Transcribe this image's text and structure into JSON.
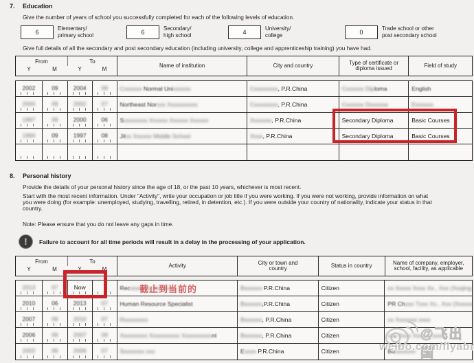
{
  "colors": {
    "accent_red": "#c9242a",
    "annotation_red": "#d25458",
    "watermark_gray": "#bdbbb8"
  },
  "section7": {
    "number": "7.",
    "title": "Education",
    "instruction1": "Give the number of years of school you successfully completed for each of the following levels of education.",
    "levels": [
      {
        "value": "6",
        "label1": "Elementary/",
        "label2": "primary school"
      },
      {
        "value": "6",
        "label1": "Secondary/",
        "label2": "high school"
      },
      {
        "value": "4",
        "label1": "University/",
        "label2": "college"
      },
      {
        "value": "0",
        "label1": "Trade school or other",
        "label2": "post secondary school"
      }
    ],
    "instruction2": "Give full details of all the secondary and post secondary education (including university, college and apprenticeship training) you have had.",
    "table": {
      "headers": {
        "from": "From",
        "to": "To",
        "y": "Y",
        "m": "M",
        "institution": "Name of institution",
        "city": "City and country",
        "certificate": "Type of certificate or diploma issued",
        "field": "Field of study"
      },
      "rows": [
        [
          [
            {
              "t": "2002",
              "b": 1
            }
          ],
          [
            {
              "t": "09",
              "b": 1
            }
          ],
          [
            {
              "t": "2004",
              "b": 1
            }
          ],
          [
            {
              "t": "09",
              "b": 2
            }
          ],
          [
            {
              "t": "Cxxxxxx ",
              "b": 2
            },
            {
              "t": "Normal Uni",
              "b": 1
            },
            {
              "t": "xxxxxx",
              "b": 2
            }
          ],
          [
            {
              "t": "Cxxxxxxxx",
              "b": 2
            },
            {
              "t": ", P.R.China",
              "b": 0
            }
          ],
          [
            {
              "t": "Cxxxxxx Dip",
              "b": 2
            },
            {
              "t": "loma",
              "b": 1
            }
          ],
          [
            {
              "t": "English",
              "b": 1
            }
          ]
        ],
        [
          [
            {
              "t": "2000",
              "b": 2
            }
          ],
          [
            {
              "t": "09",
              "b": 2
            }
          ],
          [
            {
              "t": "2002",
              "b": 2
            }
          ],
          [
            {
              "t": "07",
              "b": 2
            }
          ],
          [
            {
              "t": "Northeast Nor",
              "b": 1
            },
            {
              "t": "xxx Xxxxxxxxxx",
              "b": 2
            }
          ],
          [
            {
              "t": "Cxxxxxxxx",
              "b": 2
            },
            {
              "t": ", P.R.China",
              "b": 0
            }
          ],
          [
            {
              "t": "Cxxxxxx Dxxxxxa",
              "b": 2
            }
          ],
          [
            {
              "t": "Exxxxxx",
              "b": 2
            }
          ]
        ],
        [
          [
            {
              "t": "1997",
              "b": 2
            }
          ],
          [
            {
              "t": "09",
              "b": 2
            }
          ],
          [
            {
              "t": "2000",
              "b": 1
            }
          ],
          [
            {
              "t": "06",
              "b": 1
            }
          ],
          [
            {
              "t": "S",
              "b": 1
            },
            {
              "t": "xxxxxxxx Xxxxxx Xxxxxx Xxxxxx",
              "b": 2
            }
          ],
          [
            {
              "t": "Xxxxxxx",
              "b": 2
            },
            {
              "t": ", P.R.China",
              "b": 0
            }
          ],
          [
            {
              "t": "Secondary Diploma",
              "b": 0
            }
          ],
          [
            {
              "t": "Basic Courses",
              "b": 0
            }
          ]
        ],
        [
          [
            {
              "t": "1994",
              "b": 2
            }
          ],
          [
            {
              "t": "09",
              "b": 1
            }
          ],
          [
            {
              "t": "1997",
              "b": 1
            }
          ],
          [
            {
              "t": "08",
              "b": 1
            }
          ],
          [
            {
              "t": "Jil",
              "b": 1
            },
            {
              "t": "xx Xxxxxx Middle School",
              "b": 2
            }
          ],
          [
            {
              "t": "Xxxx",
              "b": 2
            },
            {
              "t": ", P.R.China",
              "b": 0
            }
          ],
          [
            {
              "t": "Secondary Diploma",
              "b": 0
            }
          ],
          [
            {
              "t": "Basic Courses",
              "b": 0
            }
          ]
        ],
        [
          [],
          [],
          [],
          [],
          [],
          [],
          [],
          []
        ]
      ]
    }
  },
  "section8": {
    "number": "8.",
    "title": "Personal history",
    "p1": "Provide the details of your personal history since the age of 18, or the past 10 years, whichever is most recent.",
    "p2a": "Start with the most recent information. Under \"Activity\", write your occupation or job title if you were working. If you were not working, provide information on what",
    "p2b": "you were doing (for example: unemployed, studying, travelling, retired, in detention, etc.). If you were outside your country of nationality, indicate your status in that",
    "p2c": "country.",
    "note": "Note: Please ensure that you do not leave any gaps in time.",
    "warning": "Failure to account for all time periods will result in a delay in the processing of your application.",
    "table": {
      "headers": {
        "from": "From",
        "to": "To",
        "y": "Y",
        "m": "M",
        "activity": "Activity",
        "city": "City or town and country",
        "status": "Status in country",
        "company": "Name of company, employer, school, facility, as applicable"
      },
      "rows": [
        [
          [
            {
              "t": "2013",
              "b": 2
            }
          ],
          [
            {
              "t": "07",
              "b": 2
            }
          ],
          [
            {
              "t": "Now",
              "b": 0
            }
          ],
          [],
          [
            {
              "t": "Rec",
              "b": 1
            },
            {
              "t": "xxxxxxx Xxxxxxx",
              "b": 2
            }
          ],
          [
            {
              "t": "Bxxxxxx",
              "b": 2
            },
            {
              "t": " P.R.China",
              "b": 0
            }
          ],
          [
            {
              "t": "Citizen",
              "b": 0
            }
          ],
          [
            {
              "t": "xx Xxxxx Xxxx Xx., Xxx (Xxxjing Xxxxxl))",
              "b": 2
            }
          ]
        ],
        [
          [
            {
              "t": "2010",
              "b": 1
            }
          ],
          [
            {
              "t": "06",
              "b": 1
            }
          ],
          [
            {
              "t": "2013",
              "b": 1
            }
          ],
          [
            {
              "t": "07",
              "b": 2
            }
          ],
          [
            {
              "t": "Human Resource Specialist",
              "b": 1
            }
          ],
          [
            {
              "t": "Bxxxxxx",
              "b": 2
            },
            {
              "t": ",P.R.China",
              "b": 0
            }
          ],
          [
            {
              "t": "Citizen",
              "b": 0
            }
          ],
          [
            {
              "t": "PR Ch",
              "b": 1
            },
            {
              "t": "xxx Txxx Xx., Xxx (Xxxxxxx Xxxxxx)",
              "b": 2
            }
          ]
        ],
        [
          [
            {
              "t": "2007",
              "b": 1
            }
          ],
          [
            {
              "t": "09",
              "b": 2
            }
          ],
          [
            {
              "t": "2010",
              "b": 2
            }
          ],
          [
            {
              "t": "07",
              "b": 2
            }
          ],
          [
            {
              "t": "Rxxxxxxxx",
              "b": 2
            }
          ],
          [
            {
              "t": "Bxxxxxx",
              "b": 2
            },
            {
              "t": ", P.R.China",
              "b": 0
            }
          ],
          [
            {
              "t": "Citizen",
              "b": 0
            }
          ],
          [
            {
              "t": "xx Xxxxxxx xxxx",
              "b": 2
            }
          ]
        ],
        [
          [
            {
              "t": "2006",
              "b": 1
            }
          ],
          [
            {
              "t": "09",
              "b": 2
            }
          ],
          [
            {
              "t": "2007",
              "b": 2
            }
          ],
          [
            {
              "t": "09",
              "b": 2
            }
          ],
          [
            {
              "t": "Xxxxxxxxx Xxxxxxxxxx Xxxxxxxxxx",
              "b": 2
            },
            {
              "t": "nt",
              "b": 1
            }
          ],
          [
            {
              "t": "Bxxxxxx",
              "b": 2
            },
            {
              "t": ", P.R.China",
              "b": 0
            }
          ],
          [
            {
              "t": "Citizen",
              "b": 0
            }
          ],
          [
            {
              "t": "xxx Xxxx Xxxxxxxxxx",
              "b": 2
            }
          ]
        ],
        [
          [
            {
              "t": "2002",
              "b": 2
            }
          ],
          [
            {
              "t": "09",
              "b": 2
            }
          ],
          [
            {
              "t": "2006",
              "b": 2
            }
          ],
          [
            {
              "t": "07",
              "b": 2
            }
          ],
          [
            {
              "t": "Sxxxxxxx xxx",
              "b": 2
            }
          ],
          [
            {
              "t": "E",
              "b": 1
            },
            {
              "t": "xxxx",
              "b": 2
            },
            {
              "t": " P.R.China",
              "b": 0
            }
          ],
          [
            {
              "t": "Citizen",
              "b": 0
            }
          ],
          [
            {
              "t": "Bu",
              "b": 1
            },
            {
              "t": "xxxxxxx",
              "b": 2
            }
          ]
        ]
      ]
    }
  },
  "annotation": {
    "now_note": "截止到当前的"
  },
  "watermark": {
    "handle": "@飞出国",
    "url": "weibo.com/flyabroad"
  }
}
